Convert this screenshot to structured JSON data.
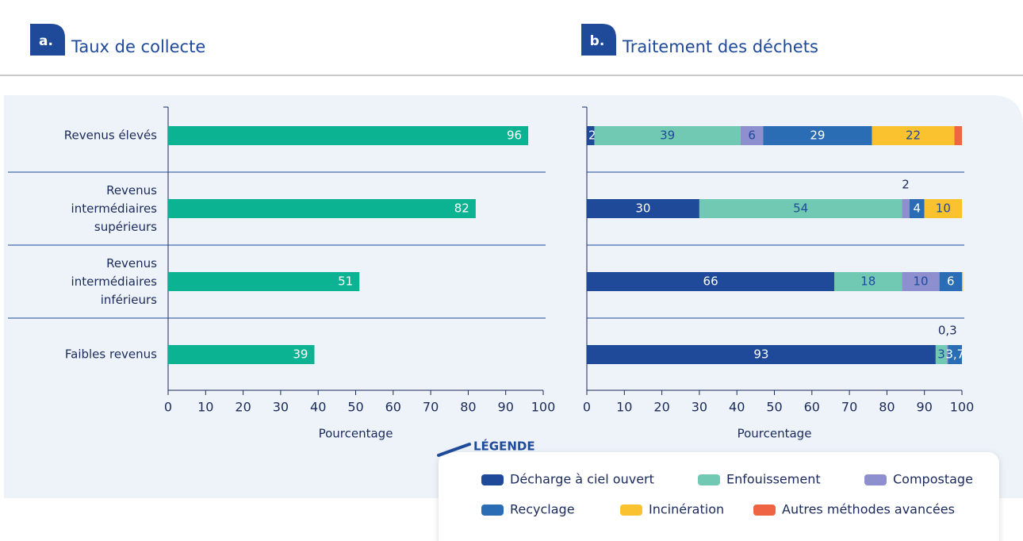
{
  "chart_data": [
    {
      "type": "bar",
      "panel_label": "a.",
      "title": "Taux de collecte",
      "categories": [
        "Revenus élevés",
        "Revenus intermédiaires supérieurs",
        "Revenus intermédiaires inférieurs",
        "Faibles revenus"
      ],
      "values": [
        96,
        82,
        51,
        39
      ],
      "color": "#0bb392",
      "xlim": [
        0,
        100
      ],
      "xticks": [
        0,
        10,
        20,
        30,
        40,
        50,
        60,
        70,
        80,
        90,
        100
      ],
      "xlabel": "Pourcentage"
    },
    {
      "type": "stacked_bar",
      "panel_label": "b.",
      "title": "Traitement des déchets",
      "xlim": [
        0,
        100
      ],
      "xticks": [
        0,
        10,
        20,
        30,
        40,
        50,
        60,
        70,
        80,
        90,
        100
      ],
      "xlabel": "Pourcentage",
      "legend_title": "LÉGENDE",
      "series": [
        {
          "name": "Décharge à ciel ouvert",
          "color": "#1f4a9a",
          "values": [
            2,
            30,
            66,
            93
          ],
          "value_labels": [
            "2",
            "30",
            "66",
            "93"
          ]
        },
        {
          "name": "Enfouissement",
          "color": "#72c9b3",
          "values": [
            39,
            54,
            18,
            3
          ],
          "value_labels": [
            "39",
            "54",
            "18",
            "3"
          ]
        },
        {
          "name": "Compostage",
          "color": "#8d8fce",
          "values": [
            6,
            2,
            10,
            0.3
          ],
          "value_labels": [
            "6",
            "2",
            "10",
            "0,3"
          ]
        },
        {
          "name": "Recyclage",
          "color": "#2a6db5",
          "values": [
            29,
            4,
            6,
            3.7
          ],
          "value_labels": [
            "29",
            "4",
            "6",
            "3,7"
          ]
        },
        {
          "name": "Incinération",
          "color": "#f9c22e",
          "values": [
            22,
            10,
            0.3,
            0
          ],
          "value_labels": [
            "22",
            "10",
            null,
            null
          ]
        },
        {
          "name": "Autres méthodes avancées",
          "color": "#ef6543",
          "values": [
            2,
            0,
            0,
            0
          ],
          "value_labels": [
            null,
            null,
            null,
            null
          ]
        }
      ]
    }
  ]
}
